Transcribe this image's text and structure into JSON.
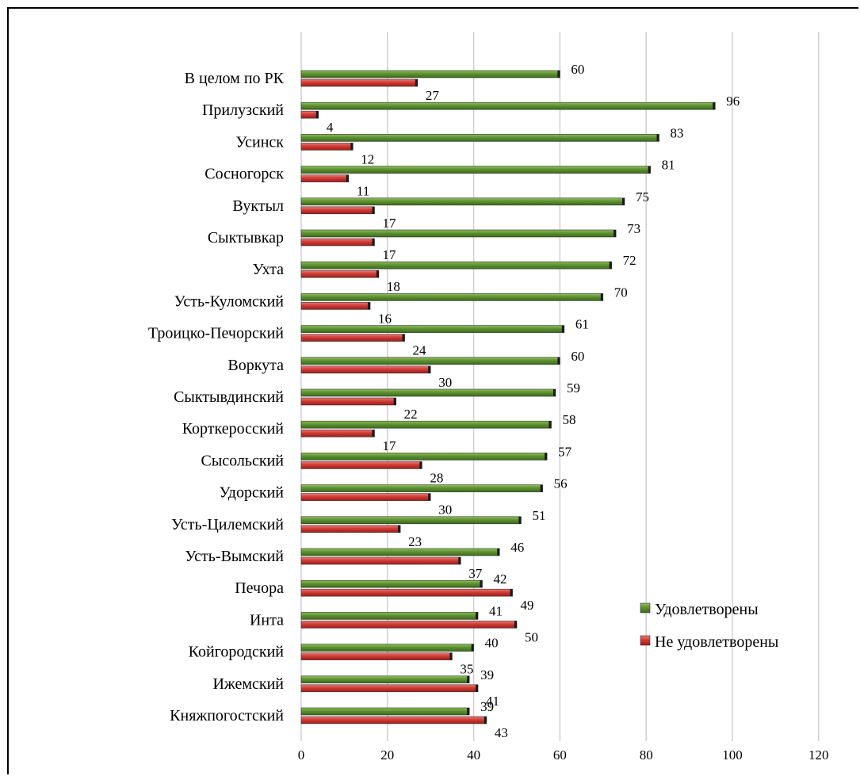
{
  "chart_data": {
    "type": "bar",
    "orientation": "horizontal",
    "categories": [
      "В целом по РК",
      "Прилузский",
      "Усинск",
      "Сосногорск",
      "Вуктыл",
      "Сыктывкар",
      "Ухта",
      "Усть-Куломский",
      "Троицко-Печорский",
      "Воркута",
      "Сыктывдинский",
      "Корткеросский",
      "Сысольский",
      "Удорский",
      "Усть-Цилемский",
      "Усть-Вымский",
      "Печора",
      "Инта",
      "Койгородский",
      "Ижемский",
      "Княжпогостский"
    ],
    "series": [
      {
        "name": "Удовлетворены",
        "color": "#5a8a32",
        "values": [
          60,
          96,
          83,
          81,
          75,
          73,
          72,
          70,
          61,
          60,
          59,
          58,
          57,
          56,
          51,
          46,
          42,
          41,
          40,
          39,
          39
        ]
      },
      {
        "name": "Не удовлетворены",
        "color": "#c8322e",
        "values": [
          27,
          4,
          12,
          11,
          17,
          17,
          18,
          16,
          24,
          30,
          22,
          17,
          28,
          30,
          23,
          37,
          49,
          50,
          35,
          41,
          43
        ]
      }
    ],
    "xlim": [
      0,
      120
    ],
    "xticks": [
      "0",
      "20",
      "40",
      "60",
      "80",
      "100",
      "120"
    ],
    "grid": true,
    "legend": "right"
  }
}
